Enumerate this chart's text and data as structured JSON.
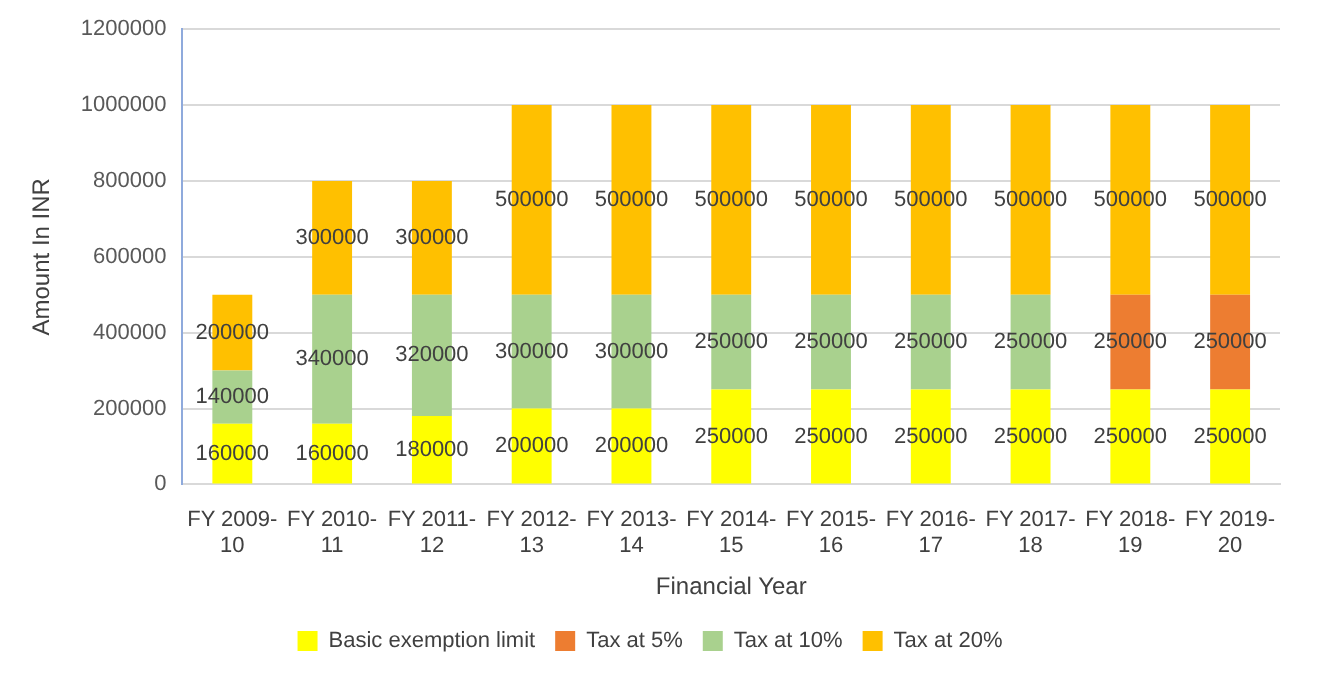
{
  "chart_data": {
    "type": "bar",
    "stacked": true,
    "xlabel": "Financial Year",
    "ylabel": "Amount In INR",
    "categories": [
      "FY 2009-10",
      "FY 2010-11",
      "FY 2011-12",
      "FY 2012-13",
      "FY 2013-14",
      "FY 2014-15",
      "FY 2015-16",
      "FY 2016-17",
      "FY 2017-18",
      "FY 2018-19",
      "FY 2019-20"
    ],
    "series": [
      {
        "name": "Basic exemption limit",
        "color": "#ffff00",
        "values": [
          160000,
          160000,
          180000,
          200000,
          200000,
          250000,
          250000,
          250000,
          250000,
          250000,
          250000
        ]
      },
      {
        "name": "Tax at 5%",
        "color": "#ed7d31",
        "values": [
          null,
          null,
          null,
          null,
          null,
          null,
          null,
          null,
          null,
          250000,
          250000
        ]
      },
      {
        "name": "Tax at 10%",
        "color": "#a9d18e",
        "values": [
          140000,
          340000,
          320000,
          300000,
          300000,
          250000,
          250000,
          250000,
          250000,
          null,
          null
        ]
      },
      {
        "name": "Tax at 20%",
        "color": "#ffc000",
        "values": [
          200000,
          300000,
          300000,
          500000,
          500000,
          500000,
          500000,
          500000,
          500000,
          500000,
          500000
        ]
      }
    ],
    "ylim": [
      0,
      1200000
    ],
    "yticks": [
      0,
      200000,
      400000,
      600000,
      800000,
      1000000,
      1200000
    ],
    "grid": "y",
    "legend": "bottom",
    "data_labels": true
  }
}
